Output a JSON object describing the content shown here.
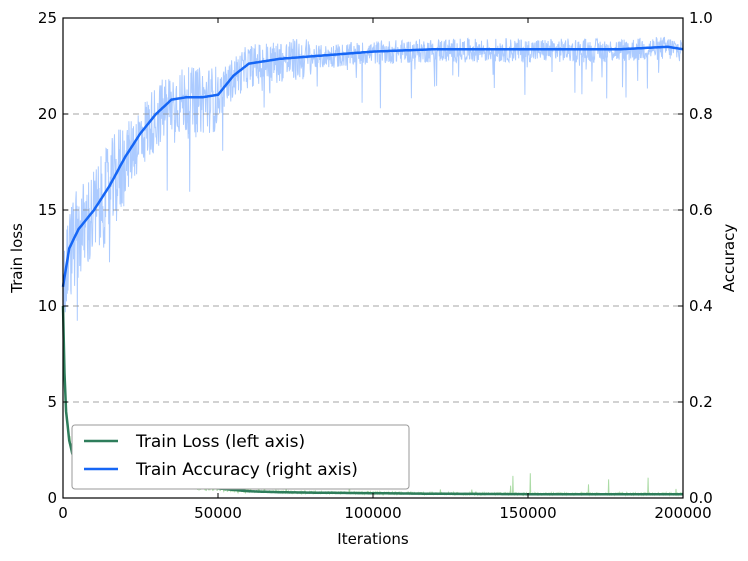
{
  "chart_data": {
    "type": "line",
    "title": "",
    "xlabel": "Iterations",
    "ylabel_left": "Train loss",
    "ylabel_right": "Accuracy",
    "xlim": [
      0,
      200000
    ],
    "ylim_left": [
      0,
      25
    ],
    "ylim_right": [
      0,
      1.0
    ],
    "x_ticks": [
      "0",
      "50000",
      "100000",
      "150000",
      "200000"
    ],
    "y_left_ticks": [
      "0",
      "5",
      "10",
      "15",
      "20",
      "25"
    ],
    "y_right_ticks": [
      "0.0",
      "0.2",
      "0.4",
      "0.6",
      "0.8",
      "1.0"
    ],
    "grid": "horizontal dashed at right-axis ticks",
    "legend_position": "lower-left",
    "series": [
      {
        "name": "Train Loss (left axis)",
        "axis": "left",
        "color": "#2e7d5b",
        "raw_color": "#a6d9a0",
        "x": [
          0,
          500,
          1000,
          2000,
          3000,
          5000,
          8000,
          12000,
          20000,
          30000,
          40000,
          50000,
          60000,
          70000,
          80000,
          100000,
          120000,
          150000,
          180000,
          200000
        ],
        "smoothed": [
          10.0,
          6.5,
          4.5,
          3.0,
          2.3,
          1.8,
          1.5,
          1.3,
          1.0,
          0.8,
          0.6,
          0.5,
          0.35,
          0.3,
          0.28,
          0.25,
          0.22,
          0.2,
          0.2,
          0.2
        ]
      },
      {
        "name": "Train Accuracy (right axis)",
        "axis": "right",
        "color": "#1666f5",
        "raw_color": "#a8c8ff",
        "x": [
          0,
          1000,
          2000,
          5000,
          10000,
          15000,
          20000,
          25000,
          30000,
          35000,
          40000,
          45000,
          50000,
          55000,
          60000,
          70000,
          80000,
          90000,
          100000,
          120000,
          140000,
          160000,
          180000,
          195000,
          200000
        ],
        "smoothed": [
          0.44,
          0.48,
          0.52,
          0.56,
          0.6,
          0.65,
          0.71,
          0.76,
          0.8,
          0.83,
          0.835,
          0.835,
          0.84,
          0.88,
          0.905,
          0.915,
          0.92,
          0.925,
          0.93,
          0.935,
          0.935,
          0.935,
          0.935,
          0.94,
          0.935
        ]
      }
    ]
  }
}
